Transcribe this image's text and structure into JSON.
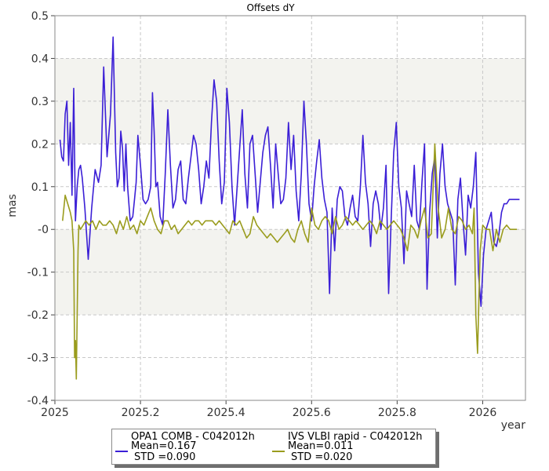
{
  "chart_data": {
    "type": "line",
    "title": "Offsets dY",
    "xlabel": "year",
    "ylabel": "mas",
    "xlim": [
      2025.0,
      2026.1
    ],
    "ylim": [
      -0.4,
      0.5
    ],
    "x_ticks": [
      "2025",
      "2025.2",
      "2025.4",
      "2025.6",
      "2025.8",
      "2026"
    ],
    "y_ticks": [
      "0.5",
      "0.4",
      "0.3",
      "0.2",
      "0.1",
      "-0",
      "-0.1",
      "-0.2",
      "-0.3",
      "-0.4"
    ],
    "grid": true,
    "legend_position": "bottom-center",
    "series": [
      {
        "name": "OPA1 COMB - C042012h",
        "mean": "Mean=0.167",
        "std": "STD =0.090",
        "color": "#3b1fd6",
        "x": [
          2025.012,
          2025.016,
          2025.02,
          2025.024,
          2025.028,
          2025.032,
          2025.036,
          2025.04,
          2025.044,
          2025.048,
          2025.052,
          2025.056,
          2025.06,
          2025.064,
          2025.07,
          2025.078,
          2025.086,
          2025.094,
          2025.102,
          2025.108,
          2025.114,
          2025.122,
          2025.13,
          2025.136,
          2025.142,
          2025.146,
          2025.15,
          2025.154,
          2025.158,
          2025.162,
          2025.166,
          2025.17,
          2025.176,
          2025.182,
          2025.186,
          2025.19,
          2025.194,
          2025.2,
          2025.206,
          2025.212,
          2025.218,
          2025.224,
          2025.228,
          2025.232,
          2025.236,
          2025.24,
          2025.246,
          2025.252,
          2025.258,
          2025.264,
          2025.27,
          2025.276,
          2025.282,
          2025.288,
          2025.294,
          2025.3,
          2025.306,
          2025.312,
          2025.318,
          2025.324,
          2025.33,
          2025.336,
          2025.342,
          2025.348,
          2025.354,
          2025.36,
          2025.366,
          2025.372,
          2025.378,
          2025.384,
          2025.39,
          2025.396,
          2025.402,
          2025.408,
          2025.414,
          2025.42,
          2025.426,
          2025.432,
          2025.438,
          2025.444,
          2025.45,
          2025.456,
          2025.462,
          2025.468,
          2025.474,
          2025.48,
          2025.486,
          2025.492,
          2025.498,
          2025.504,
          2025.51,
          2025.516,
          2025.522,
          2025.528,
          2025.534,
          2025.54,
          2025.546,
          2025.552,
          2025.558,
          2025.564,
          2025.57,
          2025.576,
          2025.582,
          2025.588,
          2025.594,
          2025.6,
          2025.606,
          2025.612,
          2025.618,
          2025.624,
          2025.63,
          2025.636,
          2025.642,
          2025.648,
          2025.654,
          2025.66,
          2025.666,
          2025.672,
          2025.678,
          2025.684,
          2025.69,
          2025.696,
          2025.702,
          2025.708,
          2025.714,
          2025.72,
          2025.726,
          2025.732,
          2025.738,
          2025.744,
          2025.75,
          2025.756,
          2025.762,
          2025.768,
          2025.774,
          2025.78,
          2025.786,
          2025.792,
          2025.798,
          2025.804,
          2025.81,
          2025.816,
          2025.822,
          2025.828,
          2025.834,
          2025.84,
          2025.846,
          2025.852,
          2025.858,
          2025.864,
          2025.87,
          2025.876,
          2025.882,
          2025.888,
          2025.894,
          2025.9,
          2025.906,
          2025.912,
          2025.918,
          2025.924,
          2025.93,
          2025.936,
          2025.942,
          2025.948,
          2025.954,
          2025.96,
          2025.966,
          2025.972,
          2025.978,
          2025.984,
          2025.99,
          2025.996,
          2026.002,
          2026.008,
          2026.014,
          2026.02,
          2026.026,
          2026.032,
          2026.038,
          2026.044,
          2026.05,
          2026.056,
          2026.062,
          2026.068,
          2026.074,
          2026.08,
          2026.086
        ],
        "y": [
          0.21,
          0.17,
          0.16,
          0.27,
          0.3,
          0.15,
          0.25,
          0.08,
          0.33,
          0.02,
          0.1,
          0.14,
          0.15,
          0.12,
          0.05,
          -0.07,
          0.05,
          0.14,
          0.11,
          0.15,
          0.38,
          0.17,
          0.27,
          0.45,
          0.18,
          0.1,
          0.12,
          0.23,
          0.19,
          0.09,
          0.2,
          0.1,
          0.02,
          0.03,
          0.07,
          0.11,
          0.22,
          0.15,
          0.07,
          0.06,
          0.07,
          0.1,
          0.32,
          0.23,
          0.1,
          0.11,
          0.03,
          0.01,
          0.13,
          0.28,
          0.15,
          0.05,
          0.07,
          0.14,
          0.16,
          0.07,
          0.06,
          0.12,
          0.17,
          0.22,
          0.2,
          0.14,
          0.06,
          0.1,
          0.16,
          0.12,
          0.25,
          0.35,
          0.3,
          0.16,
          0.06,
          0.11,
          0.33,
          0.25,
          0.1,
          0.01,
          0.1,
          0.19,
          0.28,
          0.13,
          0.05,
          0.2,
          0.22,
          0.13,
          0.04,
          0.11,
          0.18,
          0.22,
          0.24,
          0.15,
          0.05,
          0.2,
          0.13,
          0.06,
          0.07,
          0.12,
          0.25,
          0.14,
          0.22,
          0.09,
          0.02,
          0.13,
          0.3,
          0.2,
          0.06,
          0.02,
          0.1,
          0.16,
          0.21,
          0.12,
          0.07,
          0.04,
          -0.15,
          0.05,
          -0.05,
          0.07,
          0.1,
          0.09,
          0.03,
          0.01,
          0.05,
          0.08,
          0.03,
          0.02,
          0.1,
          0.22,
          0.11,
          0.06,
          -0.04,
          0.06,
          0.09,
          0.06,
          0.0,
          0.05,
          0.15,
          -0.15,
          0.02,
          0.18,
          0.25,
          0.1,
          0.05,
          -0.08,
          0.09,
          0.06,
          0.03,
          0.15,
          0.02,
          0.0,
          0.11,
          0.2,
          -0.14,
          0.04,
          0.13,
          0.17,
          -0.02,
          0.13,
          0.2,
          0.1,
          0.06,
          0.04,
          0.02,
          -0.13,
          0.07,
          0.12,
          0.02,
          -0.06,
          0.08,
          0.05,
          0.1,
          0.18,
          -0.1,
          -0.18,
          -0.06,
          0.0,
          0.02,
          0.04,
          -0.03,
          -0.04,
          -0.01,
          0.04,
          0.06,
          0.06,
          0.07,
          0.07,
          0.07,
          0.07,
          0.07
        ]
      },
      {
        "name": "IVS VLBI rapid - C042012h",
        "mean": "Mean=0.011",
        "std": "STD =0.020",
        "color": "#9a9c1e",
        "x": [
          2025.018,
          2025.024,
          2025.03,
          2025.036,
          2025.04,
          2025.044,
          2025.046,
          2025.048,
          2025.05,
          2025.052,
          2025.054,
          2025.056,
          2025.06,
          2025.066,
          2025.072,
          2025.08,
          2025.088,
          2025.096,
          2025.104,
          2025.112,
          2025.12,
          2025.128,
          2025.136,
          2025.144,
          2025.152,
          2025.16,
          2025.168,
          2025.176,
          2025.184,
          2025.192,
          2025.2,
          2025.208,
          2025.216,
          2025.224,
          2025.232,
          2025.24,
          2025.248,
          2025.256,
          2025.264,
          2025.272,
          2025.28,
          2025.288,
          2025.296,
          2025.304,
          2025.312,
          2025.32,
          2025.328,
          2025.336,
          2025.344,
          2025.352,
          2025.36,
          2025.368,
          2025.376,
          2025.384,
          2025.392,
          2025.4,
          2025.408,
          2025.416,
          2025.424,
          2025.432,
          2025.44,
          2025.448,
          2025.456,
          2025.464,
          2025.472,
          2025.48,
          2025.488,
          2025.496,
          2025.504,
          2025.512,
          2025.52,
          2025.528,
          2025.536,
          2025.544,
          2025.552,
          2025.56,
          2025.568,
          2025.576,
          2025.584,
          2025.592,
          2025.6,
          2025.608,
          2025.616,
          2025.624,
          2025.632,
          2025.64,
          2025.648,
          2025.656,
          2025.664,
          2025.672,
          2025.68,
          2025.688,
          2025.696,
          2025.704,
          2025.712,
          2025.72,
          2025.728,
          2025.736,
          2025.744,
          2025.752,
          2025.76,
          2025.768,
          2025.776,
          2025.784,
          2025.792,
          2025.8,
          2025.808,
          2025.816,
          2025.824,
          2025.832,
          2025.84,
          2025.848,
          2025.856,
          2025.864,
          2025.872,
          2025.88,
          2025.888,
          2025.896,
          2025.904,
          2025.912,
          2025.92,
          2025.928,
          2025.936,
          2025.944,
          2025.952,
          2025.96,
          2025.968,
          2025.976,
          2025.98,
          2025.984,
          2025.988,
          2025.994,
          2026.0,
          2026.008,
          2026.016,
          2026.024,
          2026.032,
          2026.04,
          2026.048,
          2026.056,
          2026.064,
          2026.072,
          2026.08
        ],
        "y": [
          0.02,
          0.08,
          0.06,
          0.04,
          0.02,
          -0.05,
          -0.3,
          -0.26,
          -0.35,
          -0.2,
          -0.05,
          0.01,
          0.0,
          0.01,
          0.02,
          0.01,
          0.02,
          0.0,
          0.02,
          0.01,
          0.01,
          0.02,
          0.01,
          -0.01,
          0.02,
          0.0,
          0.03,
          0.0,
          0.01,
          -0.01,
          0.02,
          0.01,
          0.03,
          0.05,
          0.02,
          0.0,
          -0.01,
          0.02,
          0.02,
          0.0,
          0.01,
          -0.01,
          0.0,
          0.01,
          0.02,
          0.01,
          0.02,
          0.02,
          0.01,
          0.02,
          0.02,
          0.02,
          0.01,
          0.02,
          0.01,
          0.0,
          -0.01,
          0.02,
          0.01,
          0.02,
          0.0,
          -0.02,
          -0.01,
          0.03,
          0.01,
          0.0,
          -0.01,
          -0.02,
          -0.01,
          -0.02,
          -0.03,
          -0.02,
          -0.01,
          0.0,
          -0.02,
          -0.03,
          0.0,
          0.02,
          -0.01,
          -0.03,
          0.05,
          0.01,
          0.0,
          0.02,
          0.03,
          0.02,
          -0.01,
          0.03,
          0.0,
          0.01,
          0.03,
          0.02,
          0.01,
          0.02,
          0.01,
          0.0,
          0.01,
          0.02,
          0.01,
          -0.01,
          0.02,
          0.01,
          0.0,
          0.01,
          0.02,
          0.01,
          0.0,
          -0.02,
          -0.05,
          0.01,
          0.0,
          -0.02,
          0.02,
          0.05,
          -0.02,
          -0.01,
          0.2,
          0.05,
          -0.02,
          0.0,
          0.05,
          0.0,
          -0.01,
          0.03,
          0.02,
          0.0,
          0.01,
          -0.01,
          0.05,
          -0.2,
          -0.29,
          -0.05,
          0.01,
          0.0,
          0.0,
          -0.05,
          0.0,
          -0.03,
          0.0,
          0.01,
          0.0,
          0.0,
          0.0
        ]
      }
    ]
  }
}
